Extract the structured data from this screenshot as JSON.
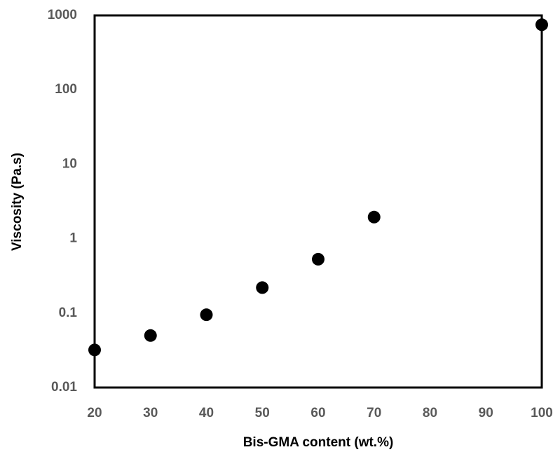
{
  "chart_data": {
    "type": "scatter",
    "x_label": "Bis-GMA content (wt.%)",
    "y_label": "Viscosity (Pa.s)",
    "x": [
      20,
      30,
      40,
      50,
      60,
      70,
      100
    ],
    "series": [
      {
        "color": "#000000",
        "values": [
          0.032,
          0.05,
          0.095,
          0.22,
          0.53,
          1.95,
          750
        ]
      }
    ],
    "xlim": [
      20,
      100
    ],
    "xticks": [
      20,
      30,
      40,
      50,
      60,
      70,
      80,
      90,
      100
    ],
    "ylim": [
      0.01,
      1000
    ],
    "yticks": [
      0.01,
      0.1,
      1,
      10,
      100,
      1000
    ],
    "yscale": "log",
    "grid": false
  }
}
